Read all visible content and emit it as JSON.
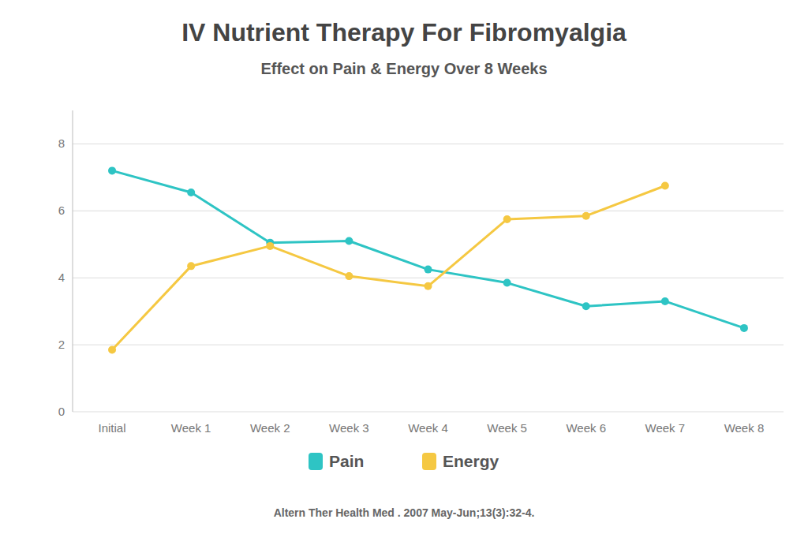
{
  "chart_data": {
    "type": "line",
    "title": "IV Nutrient Therapy For Fibromyalgia",
    "subtitle": "Effect on Pain & Energy Over 8 Weeks",
    "annotations": [
      "Altern Ther Health Med . 2007 May-Jun;13(3):32-4."
    ],
    "categories": [
      "Initial",
      "Week 1",
      "Week 2",
      "Week 3",
      "Week 4",
      "Week 5",
      "Week 6",
      "Week 7",
      "Week 8"
    ],
    "series": [
      {
        "name": "Pain",
        "color": "#2EC4C4",
        "marker": "circle",
        "values": [
          7.2,
          6.55,
          5.05,
          5.1,
          4.25,
          3.85,
          3.15,
          3.3,
          2.5
        ]
      },
      {
        "name": "Energy",
        "color": "#F5C842",
        "marker": "circle",
        "values": [
          1.85,
          4.35,
          4.95,
          4.05,
          3.75,
          5.75,
          5.85,
          6.75,
          null
        ]
      }
    ],
    "ylim": [
      0,
      9
    ],
    "yticks": [
      0,
      2,
      4,
      6,
      8
    ],
    "grid": true,
    "legend": "bottom"
  }
}
